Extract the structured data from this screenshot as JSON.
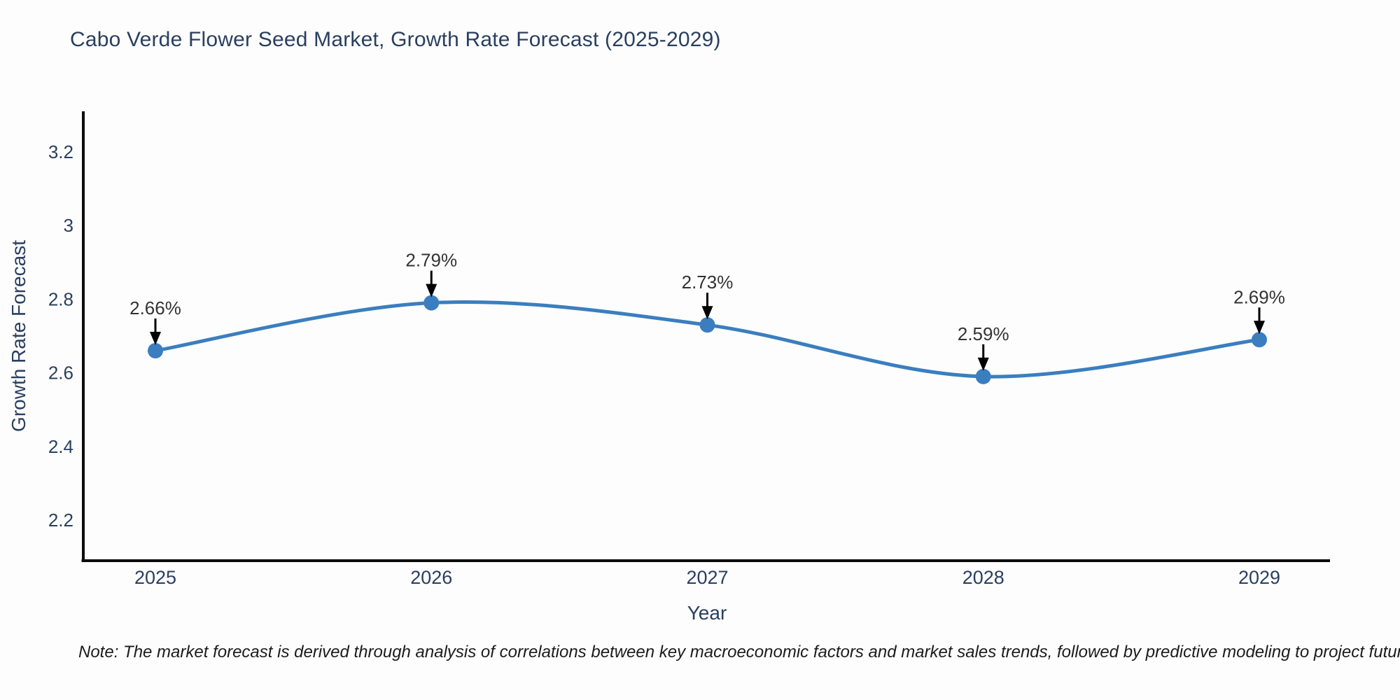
{
  "title": "Cabo Verde Flower Seed Market, Growth Rate Forecast (2025-2029)",
  "note": "Note: The market forecast is derived through analysis of correlations between key macroeconomic factors and market sales trends, followed by predictive modeling to project future sales",
  "chart_data": {
    "type": "line",
    "title": "Cabo Verde Flower Seed Market, Growth Rate Forecast (2025-2029)",
    "x": [
      "2025",
      "2026",
      "2027",
      "2028",
      "2029"
    ],
    "series": [
      {
        "name": "Growth Rate Forecast",
        "values": [
          2.66,
          2.79,
          2.73,
          2.59,
          2.69
        ]
      }
    ],
    "point_labels": [
      "2.66%",
      "2.79%",
      "2.73%",
      "2.59%",
      "2.69%"
    ],
    "xlabel": "Year",
    "ylabel": "Growth Rate Forecast",
    "ytick_values": [
      2.2,
      2.4,
      2.6,
      2.8,
      3.0,
      3.2
    ],
    "ytick_labels": [
      "2.2",
      "2.4",
      "2.6",
      "2.8",
      "3",
      "3.2"
    ],
    "ylim": [
      2.09,
      3.31
    ],
    "line_shape": "spline",
    "grid": false,
    "legend_position": "none",
    "annotation_style": "value-above-with-down-arrow"
  },
  "colors": {
    "line": "#3a7ebf",
    "marker": "#3a7ebf",
    "axis_line": "#0d0d0d",
    "axis_text": "#2a3f5f",
    "annotation_text": "#333333",
    "annotation_arrow": "#000000",
    "background": "#fdfdfd",
    "title_text": "#2a3f5f"
  }
}
